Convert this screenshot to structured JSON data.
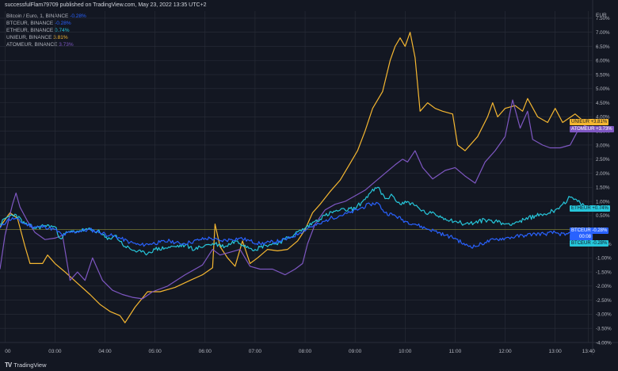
{
  "header": {
    "text": "successfulFlam79709 published on TradingView.com, May 23, 2022 13:35 UTC+2"
  },
  "legend": [
    {
      "symbol": "Bitcoin / Euro, 1, BINANCE",
      "value": "-0.28%",
      "color": "#2962ff"
    },
    {
      "symbol": "BTCEUR, BINANCE",
      "value": "-0.28%",
      "color": "#2962ff"
    },
    {
      "symbol": "ETHEUR, BINANCE",
      "value": "0.74%",
      "color": "#26c6da"
    },
    {
      "symbol": "UNIEUR, BINANCE",
      "value": "3.81%",
      "color": "#f5b731"
    },
    {
      "symbol": "ATOMEUR, BINANCE",
      "value": "3.73%",
      "color": "#7e57c2"
    }
  ],
  "footer": {
    "logo": "TV",
    "brand": "TradingView"
  },
  "colors": {
    "background": "#131722",
    "grid": "#2a2e39",
    "axis_text": "#b2b5be",
    "baseline": "#8a8c3a"
  },
  "chart_data": {
    "type": "line",
    "y_unit_label": "EUR",
    "y_ticks": [
      "7.50%",
      "7.00%",
      "6.50%",
      "6.00%",
      "5.50%",
      "5.00%",
      "4.50%",
      "4.00%",
      "3.50%",
      "3.00%",
      "2.50%",
      "2.00%",
      "1.50%",
      "1.00%",
      "0.50%",
      "-0.50%",
      "-1.00%",
      "-1.50%",
      "-2.00%",
      "-2.50%",
      "-3.00%",
      "-3.50%",
      "-4.00%"
    ],
    "y_tick_values": [
      7.5,
      7,
      6.5,
      6,
      5.5,
      5,
      4.5,
      4,
      3.5,
      3,
      2.5,
      2,
      1.5,
      1,
      0.5,
      -0.5,
      -1,
      -1.5,
      -2,
      -2.5,
      -3,
      -3.5,
      -4
    ],
    "ylim": [
      -4.0,
      7.75
    ],
    "x_ticks": [
      "00",
      "03:00",
      "04:00",
      "05:00",
      "06:00",
      "07:00",
      "08:00",
      "09:00",
      "10:00",
      "11:00",
      "12:00",
      "13:00",
      "13:40"
    ],
    "x_tick_hours": [
      2.0,
      3.0,
      4.0,
      5.0,
      6.0,
      7.0,
      8.0,
      9.0,
      10.0,
      11.0,
      12.0,
      13.0,
      13.6667
    ],
    "xlim": [
      1.9,
      13.75
    ],
    "series": [
      {
        "name": "UNIEUR",
        "color": "#f5b731",
        "last_label": "+3.81%",
        "points": [
          [
            1.9,
            0.1
          ],
          [
            2.1,
            0.6
          ],
          [
            2.25,
            0.4
          ],
          [
            2.4,
            -0.6
          ],
          [
            2.5,
            -1.2
          ],
          [
            2.75,
            -1.2
          ],
          [
            2.85,
            -0.9
          ],
          [
            3.0,
            -1.2
          ],
          [
            3.2,
            -1.5
          ],
          [
            3.45,
            -1.9
          ],
          [
            3.7,
            -2.3
          ],
          [
            3.9,
            -2.65
          ],
          [
            4.1,
            -2.9
          ],
          [
            4.3,
            -3.05
          ],
          [
            4.4,
            -3.3
          ],
          [
            4.6,
            -2.75
          ],
          [
            4.85,
            -2.2
          ],
          [
            5.1,
            -2.2
          ],
          [
            5.4,
            -2.05
          ],
          [
            5.7,
            -1.8
          ],
          [
            5.95,
            -1.6
          ],
          [
            6.15,
            -1.35
          ],
          [
            6.2,
            0.2
          ],
          [
            6.3,
            -0.6
          ],
          [
            6.45,
            -1.0
          ],
          [
            6.6,
            -1.3
          ],
          [
            6.75,
            -0.4
          ],
          [
            6.9,
            -1.2
          ],
          [
            7.05,
            -1.0
          ],
          [
            7.25,
            -0.7
          ],
          [
            7.45,
            -0.75
          ],
          [
            7.65,
            -0.7
          ],
          [
            7.85,
            -0.4
          ],
          [
            8.0,
            0.0
          ],
          [
            8.15,
            0.6
          ],
          [
            8.3,
            0.9
          ],
          [
            8.5,
            1.35
          ],
          [
            8.7,
            1.75
          ],
          [
            8.9,
            2.35
          ],
          [
            9.05,
            2.8
          ],
          [
            9.2,
            3.5
          ],
          [
            9.35,
            4.3
          ],
          [
            9.55,
            4.9
          ],
          [
            9.7,
            6.0
          ],
          [
            9.8,
            6.5
          ],
          [
            9.9,
            6.8
          ],
          [
            10.0,
            6.5
          ],
          [
            10.1,
            7.0
          ],
          [
            10.2,
            6.1
          ],
          [
            10.3,
            4.2
          ],
          [
            10.45,
            4.5
          ],
          [
            10.6,
            4.3
          ],
          [
            10.75,
            4.2
          ],
          [
            10.95,
            4.1
          ],
          [
            11.05,
            3.0
          ],
          [
            11.2,
            2.8
          ],
          [
            11.45,
            3.3
          ],
          [
            11.65,
            4.0
          ],
          [
            11.75,
            4.5
          ],
          [
            11.85,
            4.0
          ],
          [
            12.0,
            4.3
          ],
          [
            12.2,
            4.4
          ],
          [
            12.35,
            4.2
          ],
          [
            12.45,
            4.65
          ],
          [
            12.65,
            4.0
          ],
          [
            12.85,
            3.8
          ],
          [
            13.0,
            4.3
          ],
          [
            13.15,
            3.8
          ],
          [
            13.4,
            4.1
          ],
          [
            13.6,
            3.8
          ],
          [
            13.67,
            3.81
          ]
        ]
      },
      {
        "name": "ATOMEUR",
        "color": "#7e57c2",
        "last_label": "+3.73%",
        "points": [
          [
            1.9,
            -1.4
          ],
          [
            2.0,
            -0.2
          ],
          [
            2.08,
            0.4
          ],
          [
            2.15,
            0.9
          ],
          [
            2.22,
            1.3
          ],
          [
            2.3,
            0.8
          ],
          [
            2.45,
            0.3
          ],
          [
            2.6,
            -0.1
          ],
          [
            2.8,
            -0.35
          ],
          [
            3.0,
            -0.3
          ],
          [
            3.15,
            -0.2
          ],
          [
            3.3,
            -1.8
          ],
          [
            3.45,
            -1.5
          ],
          [
            3.6,
            -1.8
          ],
          [
            3.75,
            -1.0
          ],
          [
            3.95,
            -1.8
          ],
          [
            4.15,
            -2.15
          ],
          [
            4.35,
            -2.3
          ],
          [
            4.55,
            -2.4
          ],
          [
            4.75,
            -2.45
          ],
          [
            4.95,
            -2.2
          ],
          [
            5.25,
            -2.0
          ],
          [
            5.6,
            -1.6
          ],
          [
            5.95,
            -1.25
          ],
          [
            6.15,
            -0.7
          ],
          [
            6.3,
            -0.9
          ],
          [
            6.5,
            -0.8
          ],
          [
            6.7,
            -0.7
          ],
          [
            6.9,
            -1.3
          ],
          [
            7.1,
            -1.4
          ],
          [
            7.35,
            -1.4
          ],
          [
            7.6,
            -1.6
          ],
          [
            7.8,
            -1.4
          ],
          [
            7.95,
            -1.2
          ],
          [
            8.05,
            -0.5
          ],
          [
            8.2,
            0.2
          ],
          [
            8.4,
            0.7
          ],
          [
            8.6,
            0.9
          ],
          [
            8.8,
            1.0
          ],
          [
            9.0,
            1.2
          ],
          [
            9.2,
            1.4
          ],
          [
            9.4,
            1.7
          ],
          [
            9.6,
            2.0
          ],
          [
            9.8,
            2.3
          ],
          [
            9.95,
            2.5
          ],
          [
            10.05,
            2.4
          ],
          [
            10.2,
            2.8
          ],
          [
            10.35,
            2.2
          ],
          [
            10.55,
            1.8
          ],
          [
            10.8,
            2.1
          ],
          [
            11.0,
            2.2
          ],
          [
            11.2,
            1.9
          ],
          [
            11.4,
            1.65
          ],
          [
            11.6,
            2.4
          ],
          [
            11.8,
            2.8
          ],
          [
            12.0,
            3.3
          ],
          [
            12.15,
            4.6
          ],
          [
            12.3,
            3.6
          ],
          [
            12.45,
            4.2
          ],
          [
            12.55,
            3.2
          ],
          [
            12.75,
            3.0
          ],
          [
            12.9,
            2.9
          ],
          [
            13.1,
            2.9
          ],
          [
            13.3,
            3.0
          ],
          [
            13.45,
            3.5
          ],
          [
            13.6,
            3.7
          ],
          [
            13.67,
            3.73
          ]
        ]
      },
      {
        "name": "ETHEUR",
        "color": "#26c6da",
        "last_label": "+0.74%",
        "points": [
          [
            1.9,
            0.2
          ],
          [
            2.05,
            0.45
          ],
          [
            2.2,
            0.55
          ],
          [
            2.4,
            0.2
          ],
          [
            2.6,
            0.05
          ],
          [
            2.8,
            0.15
          ],
          [
            3.0,
            0.1
          ],
          [
            3.1,
            -0.3
          ],
          [
            3.25,
            -0.1
          ],
          [
            3.45,
            -0.05
          ],
          [
            3.65,
            0.0
          ],
          [
            3.85,
            -0.05
          ],
          [
            4.05,
            -0.35
          ],
          [
            4.2,
            -0.2
          ],
          [
            4.4,
            -0.6
          ],
          [
            4.6,
            -0.75
          ],
          [
            4.8,
            -0.85
          ],
          [
            5.0,
            -0.7
          ],
          [
            5.2,
            -0.65
          ],
          [
            5.4,
            -0.6
          ],
          [
            5.6,
            -0.55
          ],
          [
            5.8,
            -0.7
          ],
          [
            6.0,
            -0.55
          ],
          [
            6.2,
            -0.5
          ],
          [
            6.4,
            -0.6
          ],
          [
            6.6,
            -0.4
          ],
          [
            6.8,
            -0.55
          ],
          [
            7.0,
            -0.7
          ],
          [
            7.2,
            -0.55
          ],
          [
            7.4,
            -0.5
          ],
          [
            7.6,
            -0.35
          ],
          [
            7.8,
            -0.15
          ],
          [
            8.0,
            0.05
          ],
          [
            8.2,
            0.3
          ],
          [
            8.4,
            0.5
          ],
          [
            8.6,
            0.65
          ],
          [
            8.8,
            0.7
          ],
          [
            9.0,
            0.75
          ],
          [
            9.15,
            1.0
          ],
          [
            9.3,
            1.3
          ],
          [
            9.45,
            1.5
          ],
          [
            9.6,
            1.1
          ],
          [
            9.75,
            1.2
          ],
          [
            9.9,
            0.9
          ],
          [
            10.05,
            1.0
          ],
          [
            10.2,
            0.85
          ],
          [
            10.4,
            0.6
          ],
          [
            10.6,
            0.55
          ],
          [
            10.8,
            0.4
          ],
          [
            11.0,
            0.3
          ],
          [
            11.2,
            0.2
          ],
          [
            11.4,
            0.25
          ],
          [
            11.6,
            0.35
          ],
          [
            11.8,
            0.3
          ],
          [
            12.0,
            0.2
          ],
          [
            12.2,
            0.25
          ],
          [
            12.4,
            0.35
          ],
          [
            12.6,
            0.5
          ],
          [
            12.8,
            0.55
          ],
          [
            13.0,
            0.7
          ],
          [
            13.15,
            0.9
          ],
          [
            13.3,
            1.15
          ],
          [
            13.45,
            1.0
          ],
          [
            13.6,
            0.8
          ],
          [
            13.67,
            0.74
          ]
        ]
      },
      {
        "name": "BTCEUR",
        "color": "#2962ff",
        "last_label": "-0.28%",
        "points": [
          [
            1.9,
            0.05
          ],
          [
            2.05,
            0.35
          ],
          [
            2.2,
            0.4
          ],
          [
            2.4,
            0.2
          ],
          [
            2.6,
            0.1
          ],
          [
            2.8,
            0.1
          ],
          [
            3.0,
            0.0
          ],
          [
            3.15,
            -0.2
          ],
          [
            3.3,
            -0.1
          ],
          [
            3.5,
            -0.05
          ],
          [
            3.7,
            0.0
          ],
          [
            3.9,
            -0.1
          ],
          [
            4.1,
            -0.2
          ],
          [
            4.3,
            -0.3
          ],
          [
            4.5,
            -0.45
          ],
          [
            4.7,
            -0.55
          ],
          [
            4.9,
            -0.5
          ],
          [
            5.1,
            -0.45
          ],
          [
            5.3,
            -0.4
          ],
          [
            5.5,
            -0.5
          ],
          [
            5.7,
            -0.45
          ],
          [
            5.9,
            -0.35
          ],
          [
            6.1,
            -0.3
          ],
          [
            6.3,
            -0.4
          ],
          [
            6.5,
            -0.35
          ],
          [
            6.7,
            -0.3
          ],
          [
            6.9,
            -0.4
          ],
          [
            7.1,
            -0.5
          ],
          [
            7.3,
            -0.45
          ],
          [
            7.5,
            -0.4
          ],
          [
            7.7,
            -0.3
          ],
          [
            7.9,
            -0.1
          ],
          [
            8.1,
            0.1
          ],
          [
            8.3,
            0.2
          ],
          [
            8.5,
            0.4
          ],
          [
            8.7,
            0.5
          ],
          [
            8.9,
            0.6
          ],
          [
            9.1,
            0.75
          ],
          [
            9.3,
            0.9
          ],
          [
            9.45,
            0.95
          ],
          [
            9.6,
            0.6
          ],
          [
            9.8,
            0.5
          ],
          [
            10.0,
            0.3
          ],
          [
            10.2,
            0.2
          ],
          [
            10.4,
            0.05
          ],
          [
            10.6,
            -0.05
          ],
          [
            10.8,
            -0.2
          ],
          [
            11.0,
            -0.3
          ],
          [
            11.2,
            -0.55
          ],
          [
            11.4,
            -0.6
          ],
          [
            11.6,
            -0.45
          ],
          [
            11.8,
            -0.35
          ],
          [
            12.0,
            -0.3
          ],
          [
            12.2,
            -0.25
          ],
          [
            12.4,
            -0.2
          ],
          [
            12.6,
            -0.15
          ],
          [
            12.8,
            -0.15
          ],
          [
            13.0,
            -0.1
          ],
          [
            13.2,
            -0.2
          ],
          [
            13.4,
            -0.05
          ],
          [
            13.55,
            -0.2
          ],
          [
            13.67,
            -0.28
          ]
        ]
      }
    ],
    "price_tags": [
      {
        "text": "UNIEUR",
        "value": "+3.81%",
        "bg": "#f5b731",
        "fg": "#131722",
        "level": 3.81
      },
      {
        "text": "ATOMEUR",
        "value": "+3.73%",
        "bg": "#7e57c2",
        "fg": "#ffffff",
        "level": 3.55
      },
      {
        "text": "ETHEUR",
        "value": "+0.74%",
        "bg": "#26c6da",
        "fg": "#131722",
        "level": 0.74
      },
      {
        "text": "BTCEUR",
        "value": "-0.28%",
        "bg": "#2962ff",
        "fg": "#ffffff",
        "level": -0.05
      },
      {
        "text": "00:08",
        "value": "",
        "bg": "#2962ff",
        "fg": "#ffffff",
        "level": -0.25
      },
      {
        "text": "BTCEUR",
        "value": "-0.28%",
        "bg": "#26c6da",
        "fg": "#131722",
        "level": -0.48
      }
    ]
  }
}
